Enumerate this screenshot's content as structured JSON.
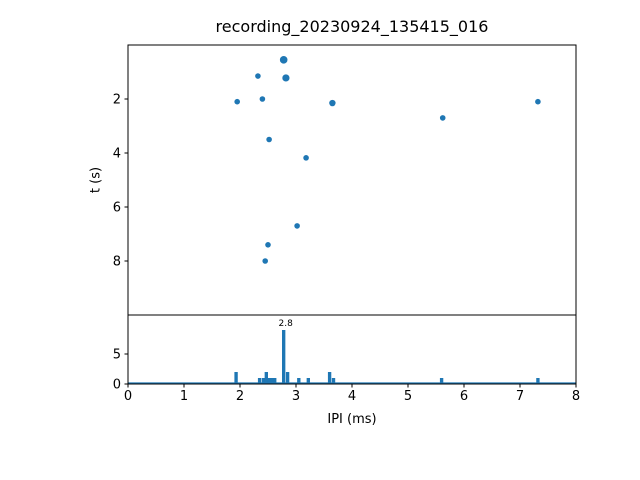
{
  "figure": {
    "title": "recording_20230924_135415_016",
    "xlabel": "IPI (ms)",
    "ylabel_top": "t (s)"
  },
  "colors": {
    "series": "#1f77b4",
    "axis": "#000000",
    "text": "#000000",
    "background": "#ffffff"
  },
  "chart_data": [
    {
      "type": "scatter",
      "name": "click-time-vs-ipi-scatter",
      "ylabel": "t (s)",
      "xlim": [
        0,
        8
      ],
      "ylim": [
        0,
        10
      ],
      "y_axis_inverted": true,
      "grid": false,
      "xticks": [
        0,
        1,
        2,
        3,
        4,
        5,
        6,
        7,
        8
      ],
      "yticks": [
        2,
        4,
        6,
        8
      ],
      "x": [
        1.95,
        2.32,
        2.4,
        2.45,
        2.5,
        2.52,
        2.78,
        2.82,
        3.02,
        3.18,
        3.65,
        5.62,
        7.32
      ],
      "y": [
        2.1,
        1.15,
        2.0,
        8.0,
        7.4,
        3.5,
        0.55,
        1.22,
        6.7,
        4.18,
        2.15,
        2.7,
        2.1
      ],
      "sizes": [
        2.8,
        2.8,
        2.8,
        2.8,
        2.8,
        2.8,
        3.8,
        3.6,
        2.8,
        2.8,
        3.2,
        2.8,
        2.8
      ]
    },
    {
      "type": "bar",
      "name": "ipi-histogram",
      "xlabel": "IPI (ms)",
      "xlim": [
        0,
        8
      ],
      "ylim": [
        0,
        11.5
      ],
      "yticks": [
        0,
        5
      ],
      "bar_width": 0.06,
      "baseline": true,
      "x": [
        1.93,
        2.35,
        2.42,
        2.47,
        2.52,
        2.57,
        2.62,
        2.78,
        2.85,
        3.05,
        3.22,
        3.6,
        3.67,
        5.6,
        7.32
      ],
      "counts": [
        2,
        1,
        1,
        2,
        1,
        1,
        1,
        9,
        2,
        1,
        1,
        2,
        1,
        1,
        1
      ],
      "annotation": {
        "text": "2.8",
        "x": 2.78
      }
    }
  ]
}
